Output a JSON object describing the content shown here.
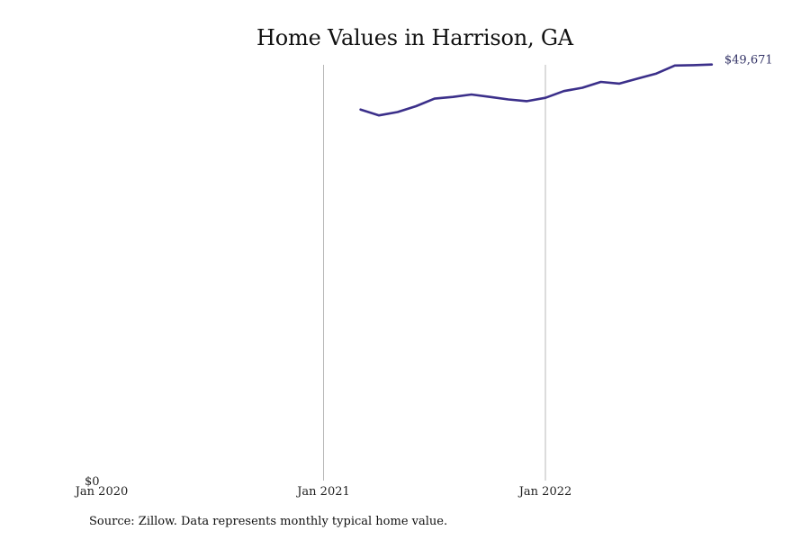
{
  "chart_data": {
    "type": "line",
    "title": "Home Values in Harrison, GA",
    "xlabel": "",
    "ylabel": "",
    "x_ticks": [
      "Jan 2020",
      "Jan 2021",
      "Jan 2022"
    ],
    "y_ticks": [
      "$0"
    ],
    "ylim": [
      0,
      50500
    ],
    "series": [
      {
        "color": "#3b2f8a",
        "x": [
          "2021-03",
          "2021-04",
          "2021-05",
          "2021-06",
          "2021-07",
          "2021-08",
          "2021-09",
          "2021-10",
          "2021-11",
          "2021-12",
          "2022-01",
          "2022-02",
          "2022-03",
          "2022-04",
          "2022-05",
          "2022-06",
          "2022-07",
          "2022-08",
          "2022-09",
          "2022-10"
        ],
        "values": [
          44300,
          43600,
          44000,
          44700,
          45600,
          45800,
          46100,
          45800,
          45500,
          45300,
          45700,
          46500,
          46900,
          47600,
          47400,
          48000,
          48600,
          49550,
          49600,
          49671
        ],
        "end_label": "$49,671"
      }
    ],
    "grid": {
      "vertical": true,
      "horizontal": false
    }
  },
  "source": "Source: Zillow. Data represents monthly typical home value."
}
